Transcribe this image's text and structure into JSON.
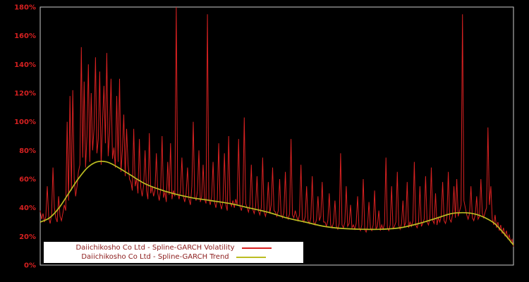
{
  "chart_data": {
    "type": "line",
    "title": "",
    "xlabel": "",
    "ylabel": "",
    "ylim": [
      0,
      180
    ],
    "yticks": [
      "0%",
      "20%",
      "40%",
      "60%",
      "80%",
      "100%",
      "120%",
      "140%",
      "160%",
      "180%"
    ],
    "xticks": [],
    "grid": false,
    "background": "#000000",
    "frame_color": "#cccccc",
    "tick_color": "#d42020",
    "legend_position": "bottom-center-inside",
    "legend_background": "#ffffff",
    "legend_text_color": "#8b1a1a",
    "series": [
      {
        "name": "Daiichikosho Co Ltd - Spline-GARCH Volatility",
        "color": "#d92121",
        "unit": "%",
        "values": [
          38,
          32,
          36,
          30,
          34,
          55,
          33,
          29,
          35,
          68,
          40,
          33,
          30,
          48,
          34,
          31,
          36,
          42,
          38,
          100,
          45,
          118,
          52,
          122,
          60,
          48,
          55,
          65,
          70,
          152,
          75,
          128,
          68,
          90,
          140,
          72,
          120,
          80,
          95,
          145,
          78,
          88,
          135,
          70,
          100,
          125,
          85,
          148,
          76,
          92,
          130,
          74,
          82,
          68,
          118,
          72,
          130,
          65,
          80,
          105,
          62,
          95,
          70,
          60,
          58,
          52,
          95,
          55,
          60,
          50,
          88,
          54,
          48,
          56,
          80,
          52,
          46,
          92,
          50,
          55,
          48,
          52,
          78,
          50,
          45,
          53,
          90,
          47,
          51,
          44,
          72,
          49,
          85,
          46,
          52,
          48,
          180,
          50,
          46,
          52,
          75,
          48,
          44,
          50,
          68,
          46,
          42,
          55,
          100,
          48,
          45,
          52,
          80,
          44,
          48,
          70,
          46,
          43,
          175,
          46,
          42,
          48,
          72,
          44,
          40,
          46,
          85,
          43,
          39,
          45,
          78,
          42,
          38,
          90,
          44,
          41,
          45,
          40,
          46,
          42,
          88,
          41,
          38,
          44,
          103,
          43,
          40,
          37,
          42,
          70,
          39,
          36,
          41,
          62,
          38,
          35,
          40,
          75,
          37,
          34,
          39,
          58,
          36,
          42,
          68,
          38,
          37,
          34,
          38,
          60,
          35,
          33,
          37,
          65,
          34,
          32,
          36,
          88,
          35,
          33,
          38,
          34,
          31,
          35,
          70,
          32,
          30,
          34,
          55,
          31,
          29,
          33,
          62,
          30,
          28,
          32,
          48,
          31,
          34,
          58,
          30,
          30,
          27,
          31,
          50,
          28,
          26,
          30,
          45,
          27,
          25,
          29,
          78,
          28,
          26,
          30,
          55,
          27,
          29,
          42,
          26,
          28,
          25,
          29,
          48,
          26,
          24,
          28,
          60,
          25,
          23,
          27,
          44,
          26,
          24,
          28,
          52,
          25,
          27,
          38,
          24,
          28,
          25,
          29,
          75,
          26,
          24,
          28,
          55,
          25,
          27,
          30,
          65,
          28,
          25,
          29,
          45,
          27,
          30,
          58,
          26,
          30,
          27,
          31,
          72,
          28,
          26,
          30,
          55,
          27,
          29,
          32,
          62,
          30,
          28,
          33,
          68,
          31,
          29,
          50,
          28,
          33,
          30,
          34,
          58,
          31,
          29,
          33,
          65,
          32,
          30,
          35,
          55,
          33,
          60,
          34,
          38,
          42,
          175,
          45,
          40,
          35,
          32,
          36,
          55,
          33,
          31,
          35,
          48,
          32,
          34,
          60,
          36,
          33,
          37,
          40,
          96,
          42,
          55,
          32,
          28,
          35,
          26,
          30,
          24,
          28,
          22,
          26,
          20,
          24,
          18,
          21,
          16,
          18,
          13
        ]
      },
      {
        "name": "Daiichikosho Co Ltd - Spline-GARCH Trend",
        "color": "#bcbd22",
        "unit": "%",
        "points": [
          [
            0.0,
            30
          ],
          [
            0.02,
            33
          ],
          [
            0.04,
            40
          ],
          [
            0.06,
            50
          ],
          [
            0.08,
            60
          ],
          [
            0.1,
            68
          ],
          [
            0.12,
            72
          ],
          [
            0.14,
            72
          ],
          [
            0.16,
            69
          ],
          [
            0.19,
            63
          ],
          [
            0.22,
            57
          ],
          [
            0.25,
            53
          ],
          [
            0.28,
            50
          ],
          [
            0.32,
            47
          ],
          [
            0.36,
            45
          ],
          [
            0.4,
            43
          ],
          [
            0.44,
            40
          ],
          [
            0.48,
            37
          ],
          [
            0.52,
            33
          ],
          [
            0.56,
            30
          ],
          [
            0.6,
            27
          ],
          [
            0.64,
            25.5
          ],
          [
            0.68,
            25
          ],
          [
            0.72,
            25
          ],
          [
            0.76,
            26
          ],
          [
            0.8,
            29
          ],
          [
            0.84,
            33
          ],
          [
            0.87,
            36
          ],
          [
            0.9,
            36.5
          ],
          [
            0.92,
            35.5
          ],
          [
            0.94,
            33
          ],
          [
            0.96,
            29
          ],
          [
            0.98,
            22
          ],
          [
            1.0,
            14
          ]
        ]
      }
    ]
  }
}
